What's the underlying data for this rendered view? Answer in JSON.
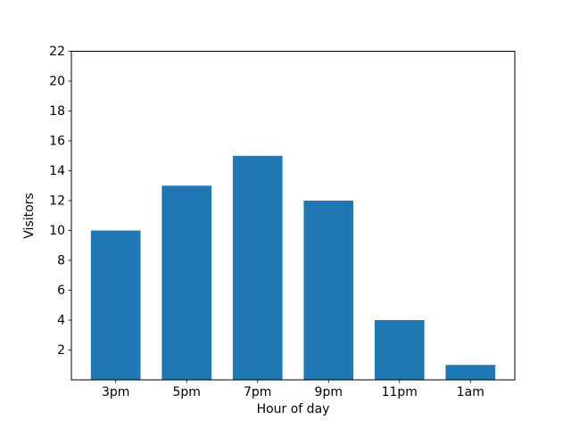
{
  "chart_data": {
    "type": "bar",
    "title": "",
    "xlabel": "Hour of day",
    "ylabel": "Visitors",
    "categories": [
      "3pm",
      "5pm",
      "7pm",
      "9pm",
      "11pm",
      "1am"
    ],
    "values": [
      10,
      13,
      15,
      12,
      4,
      1
    ],
    "yticks": [
      2,
      4,
      6,
      8,
      10,
      12,
      14,
      16,
      18,
      20,
      22
    ],
    "ylim": [
      0,
      22
    ],
    "xlim": [
      -0.625,
      5.625
    ],
    "bar_width": 0.7,
    "bar_color": "#1f77b4",
    "axis_color": "#000000",
    "background": "#ffffff",
    "grid": false,
    "legend": null
  }
}
